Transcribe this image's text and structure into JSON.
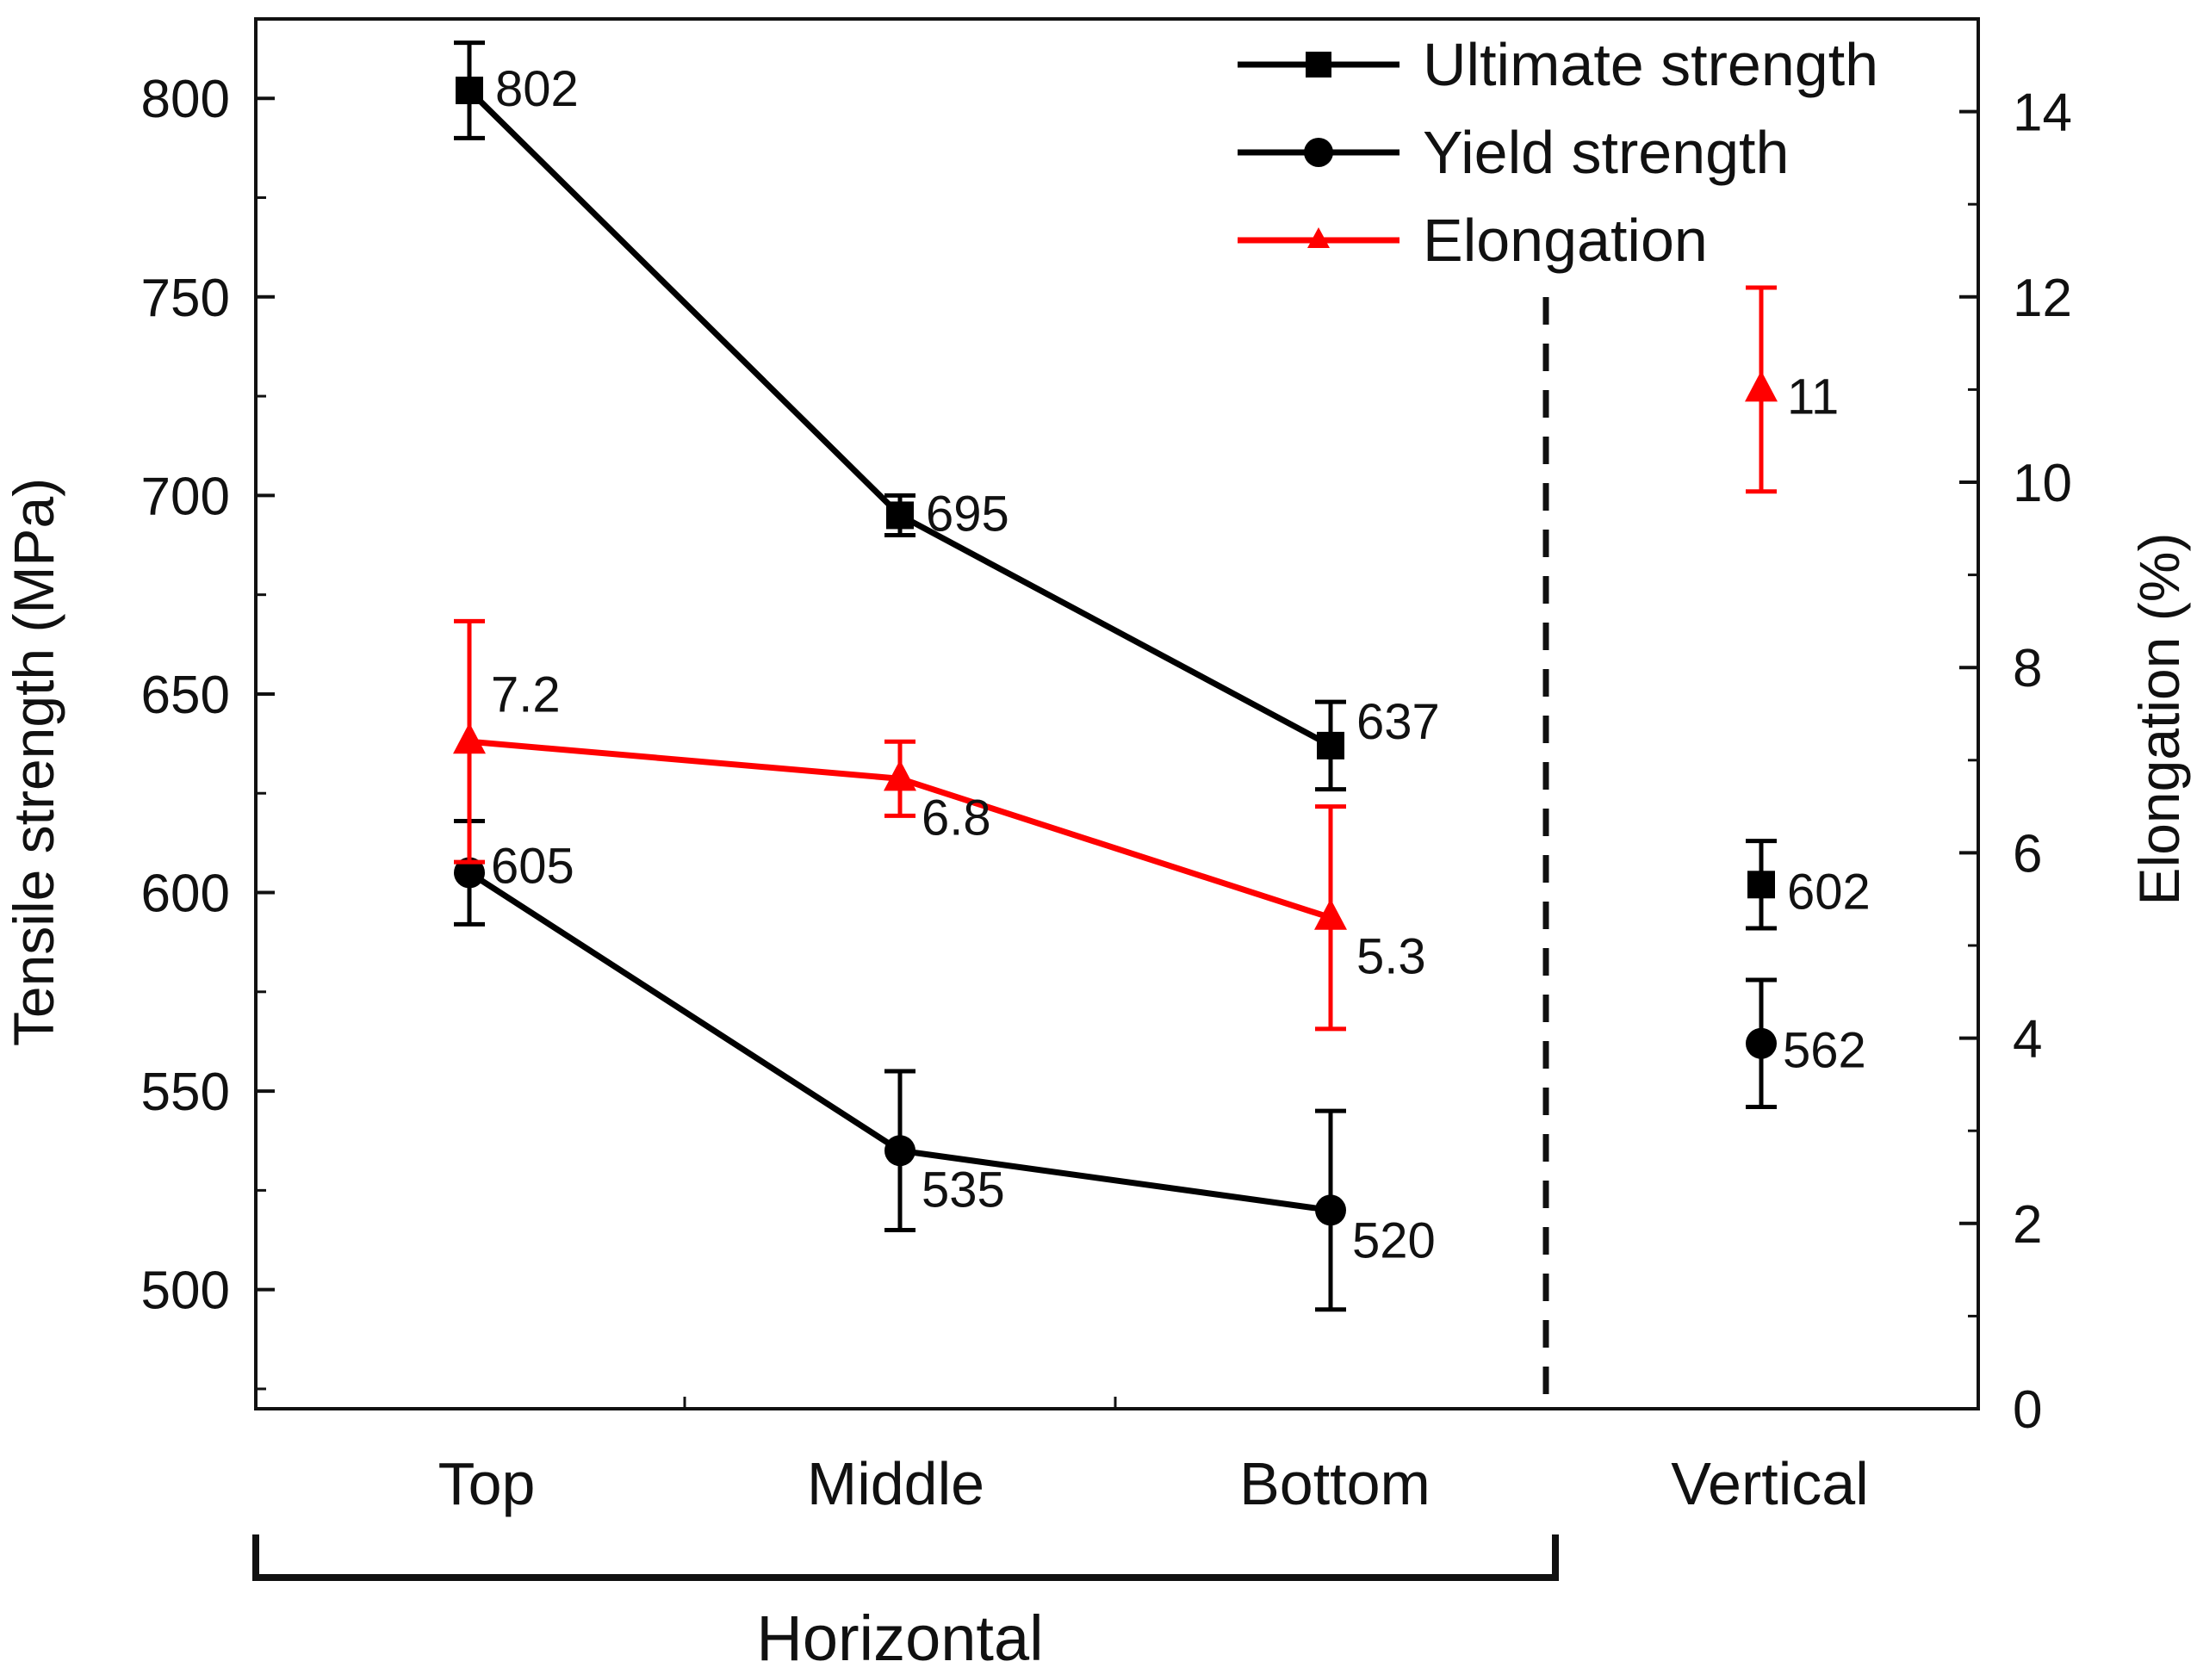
{
  "chart_data": {
    "type": "line",
    "title": "",
    "categories": [
      "Top",
      "Middle",
      "Bottom",
      "Vertical"
    ],
    "group_label": "Horizontal",
    "group_categories": [
      "Top",
      "Middle",
      "Bottom"
    ],
    "ylabel_left": "Tensile strength (MPa)",
    "ylabel_right": "Elongation (%)",
    "ylim_left": [
      470,
      820
    ],
    "ylim_right": [
      0,
      15
    ],
    "yticks_left": [
      500,
      550,
      600,
      650,
      700,
      750,
      800
    ],
    "yticks_right": [
      0,
      2,
      4,
      6,
      8,
      10,
      12,
      14
    ],
    "legend_position": "top-right",
    "colors": {
      "strength": "#000000",
      "elongation": "#ff0000"
    },
    "series": [
      {
        "name": "Ultimate strength",
        "axis": "left",
        "marker": "square",
        "values": [
          802,
          695,
          637,
          602
        ],
        "errors": [
          12,
          5,
          11,
          11
        ],
        "labels": [
          "802",
          "695",
          "637",
          "602"
        ]
      },
      {
        "name": "Yield strength",
        "axis": "left",
        "marker": "circle",
        "values": [
          605,
          535,
          520,
          562
        ],
        "errors": [
          13,
          20,
          25,
          16
        ],
        "labels": [
          "605",
          "535",
          "520",
          "562"
        ]
      },
      {
        "name": "Elongation",
        "axis": "right",
        "marker": "triangle",
        "values": [
          7.2,
          6.8,
          5.3,
          11
        ],
        "errors": [
          1.3,
          0.4,
          1.2,
          1.1
        ],
        "labels": [
          "7.2",
          "6.8",
          "5.3",
          "11"
        ]
      }
    ]
  }
}
